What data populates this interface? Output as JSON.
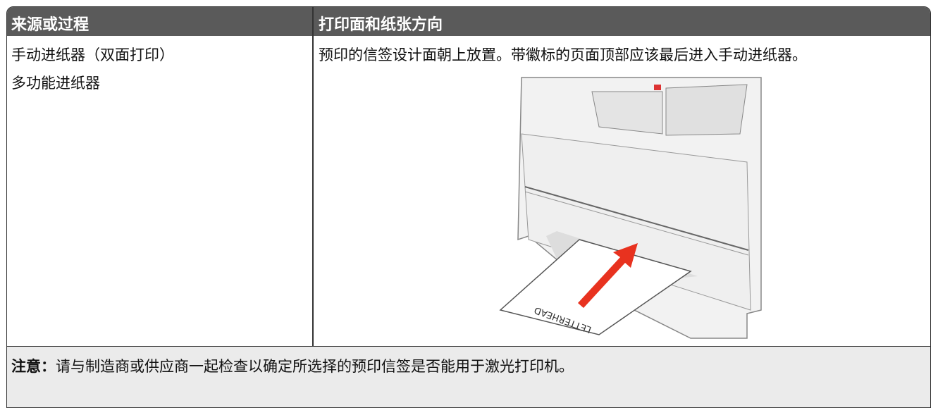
{
  "table": {
    "header": [
      "来源或过程",
      "打印面和纸张方向"
    ],
    "rows": [
      [
        [
          "手动进纸器（双面打印）",
          "多功能进纸器"
        ],
        "预印的信签设计面朝上放置。带徽标的页面顶部应该最后进入手动进纸器。"
      ]
    ],
    "illustration_label": "LETTERHEAD",
    "note": {
      "label": "注意：",
      "text": "请与制造商或供应商一起检查以确定所选择的预印信签是否能用于激光打印机。"
    }
  }
}
